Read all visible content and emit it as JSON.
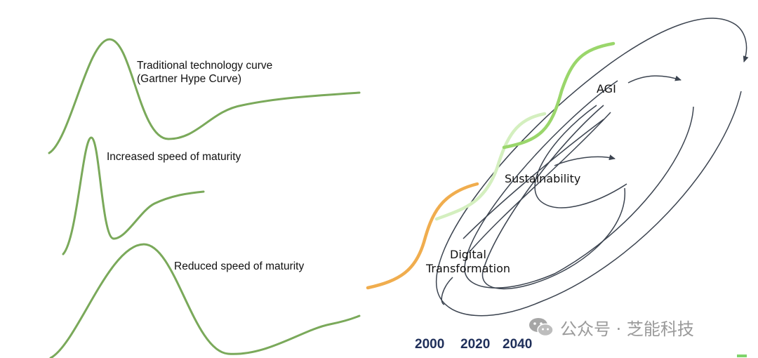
{
  "left_panel": {
    "curve1_label_line1": "Traditional technology curve",
    "curve1_label_line2": "(Gartner Hype Curve)",
    "curve2_label": "Increased speed of maturity",
    "curve3_label": "Reduced speed of maturity"
  },
  "right_panel": {
    "stage1_label_line1": "Digital",
    "stage1_label_line2": "Transformation",
    "stage2_label": "Sustainability",
    "stage3_label": "AGI",
    "years": [
      "2000",
      "2020",
      "2040"
    ]
  },
  "watermark": {
    "text": "公众号 · 芝能科技",
    "icon": "wechat-icon"
  },
  "colors": {
    "curve_green": "#7aa95a",
    "digital_orange": "#f0ad4e",
    "sustain_light_green": "#d4efbf",
    "agi_green": "#9ad66b",
    "orbit_dark": "#3c4450",
    "year_navy": "#1f2f5a"
  }
}
